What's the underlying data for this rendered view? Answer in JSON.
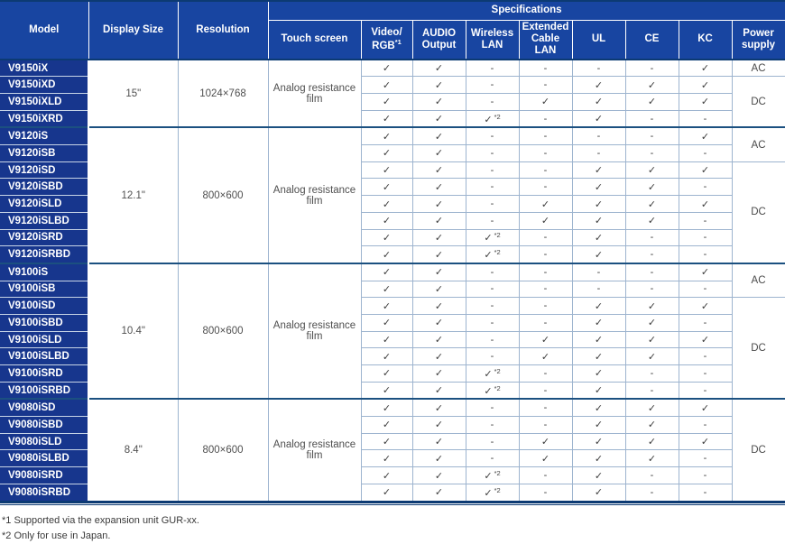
{
  "table": {
    "header": {
      "model": "Model",
      "display_size": "Display Size",
      "resolution": "Resolution",
      "specifications": "Specifications",
      "touch_screen": "Touch screen",
      "video_rgb": {
        "line1": "Video/",
        "line2": "RGB",
        "sup": "*1"
      },
      "audio": {
        "line1": "AUDIO",
        "line2": "Output"
      },
      "wireless": {
        "line1": "Wireless",
        "line2": "LAN"
      },
      "extended": {
        "line1": "Extended",
        "line2": "Cable LAN"
      },
      "ul": "UL",
      "ce": "CE",
      "kc": "KC",
      "power": {
        "line1": "Power",
        "line2": "supply"
      }
    },
    "spec_columns": [
      "Video/RGB",
      "AUDIO Output",
      "Wireless LAN",
      "Extended Cable LAN",
      "UL",
      "CE",
      "KC"
    ],
    "symbols": {
      "check": "✓",
      "dash": "-",
      "check2": "✓",
      "sup2": "*2"
    },
    "groups": [
      {
        "display_size": "15\"",
        "resolution": "1024×768",
        "touch_screen": "Analog resistance film",
        "rows": [
          {
            "model": "V9150iX",
            "specs": [
              "check",
              "check",
              "dash",
              "dash",
              "dash",
              "dash",
              "check"
            ]
          },
          {
            "model": "V9150iXD",
            "specs": [
              "check",
              "check",
              "dash",
              "dash",
              "check",
              "check",
              "check"
            ]
          },
          {
            "model": "V9150iXLD",
            "specs": [
              "check",
              "check",
              "dash",
              "check",
              "check",
              "check",
              "check"
            ]
          },
          {
            "model": "V9150iXRD",
            "specs": [
              "check",
              "check",
              "check2",
              "dash",
              "check",
              "dash",
              "dash"
            ]
          }
        ],
        "power": [
          {
            "label": "AC",
            "rows": 1
          },
          {
            "label": "DC",
            "rows": 3
          }
        ]
      },
      {
        "display_size": "12.1\"",
        "resolution": "800×600",
        "touch_screen": "Analog resistance film",
        "rows": [
          {
            "model": "V9120iS",
            "specs": [
              "check",
              "check",
              "dash",
              "dash",
              "dash",
              "dash",
              "check"
            ]
          },
          {
            "model": "V9120iSB",
            "specs": [
              "check",
              "check",
              "dash",
              "dash",
              "dash",
              "dash",
              "dash"
            ]
          },
          {
            "model": "V9120iSD",
            "specs": [
              "check",
              "check",
              "dash",
              "dash",
              "check",
              "check",
              "check"
            ]
          },
          {
            "model": "V9120iSBD",
            "specs": [
              "check",
              "check",
              "dash",
              "dash",
              "check",
              "check",
              "dash"
            ]
          },
          {
            "model": "V9120iSLD",
            "specs": [
              "check",
              "check",
              "dash",
              "check",
              "check",
              "check",
              "check"
            ]
          },
          {
            "model": "V9120iSLBD",
            "specs": [
              "check",
              "check",
              "dash",
              "check",
              "check",
              "check",
              "dash"
            ]
          },
          {
            "model": "V9120iSRD",
            "specs": [
              "check",
              "check",
              "check2",
              "dash",
              "check",
              "dash",
              "dash"
            ]
          },
          {
            "model": "V9120iSRBD",
            "specs": [
              "check",
              "check",
              "check2",
              "dash",
              "check",
              "dash",
              "dash"
            ]
          }
        ],
        "power": [
          {
            "label": "AC",
            "rows": 2
          },
          {
            "label": "DC",
            "rows": 6
          }
        ]
      },
      {
        "display_size": "10.4\"",
        "resolution": "800×600",
        "touch_screen": "Analog resistance film",
        "rows": [
          {
            "model": "V9100iS",
            "specs": [
              "check",
              "check",
              "dash",
              "dash",
              "dash",
              "dash",
              "check"
            ]
          },
          {
            "model": "V9100iSB",
            "specs": [
              "check",
              "check",
              "dash",
              "dash",
              "dash",
              "dash",
              "dash"
            ]
          },
          {
            "model": "V9100iSD",
            "specs": [
              "check",
              "check",
              "dash",
              "dash",
              "check",
              "check",
              "check"
            ]
          },
          {
            "model": "V9100iSBD",
            "specs": [
              "check",
              "check",
              "dash",
              "dash",
              "check",
              "check",
              "dash"
            ]
          },
          {
            "model": "V9100iSLD",
            "specs": [
              "check",
              "check",
              "dash",
              "check",
              "check",
              "check",
              "check"
            ]
          },
          {
            "model": "V9100iSLBD",
            "specs": [
              "check",
              "check",
              "dash",
              "check",
              "check",
              "check",
              "dash"
            ]
          },
          {
            "model": "V9100iSRD",
            "specs": [
              "check",
              "check",
              "check2",
              "dash",
              "check",
              "dash",
              "dash"
            ]
          },
          {
            "model": "V9100iSRBD",
            "specs": [
              "check",
              "check",
              "check2",
              "dash",
              "check",
              "dash",
              "dash"
            ]
          }
        ],
        "power": [
          {
            "label": "AC",
            "rows": 2
          },
          {
            "label": "DC",
            "rows": 6
          }
        ]
      },
      {
        "display_size": "8.4\"",
        "resolution": "800×600",
        "touch_screen": "Analog resistance film",
        "rows": [
          {
            "model": "V9080iSD",
            "specs": [
              "check",
              "check",
              "dash",
              "dash",
              "check",
              "check",
              "check"
            ]
          },
          {
            "model": "V9080iSBD",
            "specs": [
              "check",
              "check",
              "dash",
              "dash",
              "check",
              "check",
              "dash"
            ]
          },
          {
            "model": "V9080iSLD",
            "specs": [
              "check",
              "check",
              "dash",
              "check",
              "check",
              "check",
              "check"
            ]
          },
          {
            "model": "V9080iSLBD",
            "specs": [
              "check",
              "check",
              "dash",
              "check",
              "check",
              "check",
              "dash"
            ]
          },
          {
            "model": "V9080iSRD",
            "specs": [
              "check",
              "check",
              "check2",
              "dash",
              "check",
              "dash",
              "dash"
            ]
          },
          {
            "model": "V9080iSRBD",
            "specs": [
              "check",
              "check",
              "check2",
              "dash",
              "check",
              "dash",
              "dash"
            ]
          }
        ],
        "power": [
          {
            "label": "DC",
            "rows": 6
          }
        ]
      }
    ],
    "footnotes": [
      "*1 Supported via the expansion unit GUR-xx.",
      "*2 Only for use in Japan."
    ]
  },
  "colors": {
    "header_blue": "#1845a1",
    "model_chip_blue": "#17368d",
    "dark_rule_navy": "#0c3a73",
    "group_divider_blue": "#1b5080",
    "grid_border_blue": "#9db4cf",
    "body_text_gray": "#4a4a4a"
  }
}
